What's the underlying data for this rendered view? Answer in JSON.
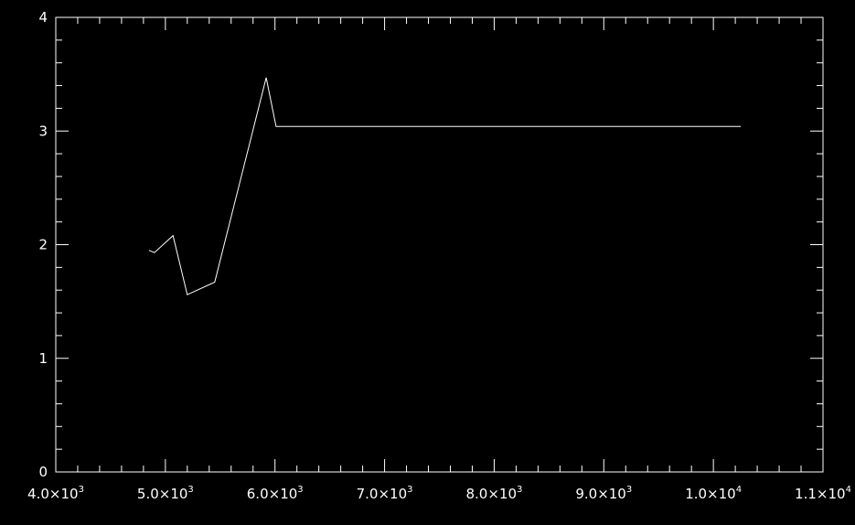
{
  "chart_data": {
    "type": "line",
    "title": "",
    "xlabel": "",
    "ylabel": "",
    "xlim": [
      4000,
      11000
    ],
    "ylim": [
      0,
      4
    ],
    "grid": false,
    "colors": {
      "background": "#000000",
      "foreground": "#ffffff"
    },
    "x_ticks": [
      {
        "value": 4000,
        "mantissa": "4.0",
        "exponent": "3"
      },
      {
        "value": 5000,
        "mantissa": "5.0",
        "exponent": "3"
      },
      {
        "value": 6000,
        "mantissa": "6.0",
        "exponent": "3"
      },
      {
        "value": 7000,
        "mantissa": "7.0",
        "exponent": "3"
      },
      {
        "value": 8000,
        "mantissa": "8.0",
        "exponent": "3"
      },
      {
        "value": 9000,
        "mantissa": "9.0",
        "exponent": "3"
      },
      {
        "value": 10000,
        "mantissa": "1.0",
        "exponent": "4"
      },
      {
        "value": 11000,
        "mantissa": "1.1",
        "exponent": "4"
      }
    ],
    "y_ticks": [
      {
        "value": 0,
        "label": "0"
      },
      {
        "value": 1,
        "label": "1"
      },
      {
        "value": 2,
        "label": "2"
      },
      {
        "value": 3,
        "label": "3"
      },
      {
        "value": 4,
        "label": "4"
      }
    ],
    "series": [
      {
        "x": [
          4850,
          4900,
          5070,
          5200,
          5450,
          5920,
          6010,
          10250
        ],
        "y": [
          1.95,
          1.93,
          2.08,
          1.56,
          1.67,
          3.47,
          3.04,
          3.04
        ]
      }
    ]
  }
}
